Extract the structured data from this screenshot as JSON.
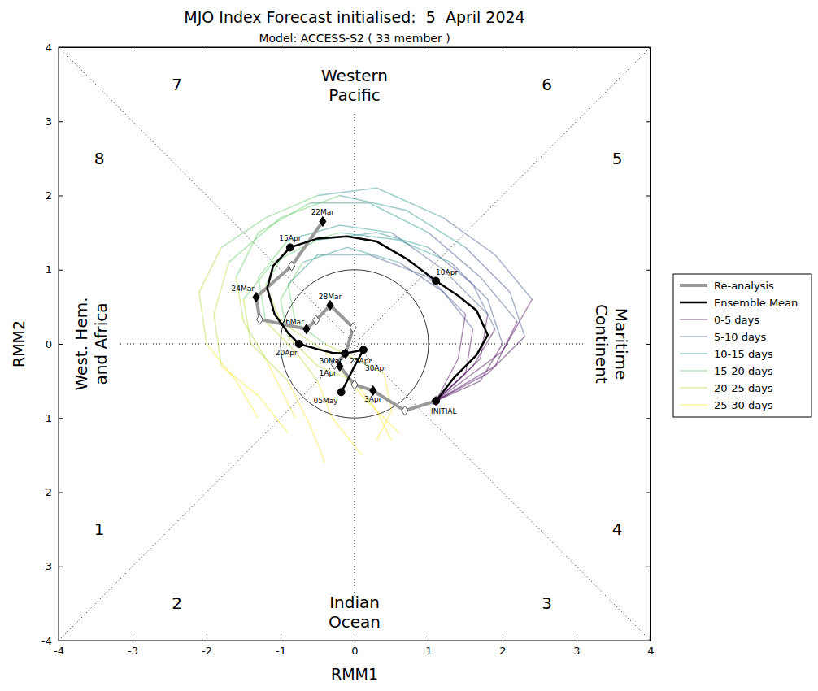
{
  "chart_data": {
    "type": "mjo_phase",
    "title": "MJO Index Forecast initialised:  5  April 2024",
    "subtitle": "Model: ACCESS-S2 ( 33 member )",
    "xlabel": "RMM1",
    "ylabel": "RMM2",
    "xlim": [
      -4,
      4
    ],
    "ylim": [
      -4,
      4
    ],
    "xticks": [
      -4,
      -3,
      -2,
      -1,
      0,
      1,
      2,
      3,
      4
    ],
    "yticks": [
      -4,
      -3,
      -2,
      -1,
      0,
      1,
      2,
      3,
      4
    ],
    "legend": "right",
    "amplitude_circle": 1,
    "phase_labels": [
      {
        "label": "1",
        "x": -3.45,
        "y": -2.5
      },
      {
        "label": "2",
        "x": -2.4,
        "y": -3.5
      },
      {
        "label": "3",
        "x": 2.6,
        "y": -3.5
      },
      {
        "label": "4",
        "x": 3.55,
        "y": -2.5
      },
      {
        "label": "5",
        "x": 3.55,
        "y": 2.5
      },
      {
        "label": "6",
        "x": 2.6,
        "y": 3.5
      },
      {
        "label": "7",
        "x": -2.4,
        "y": 3.5
      },
      {
        "label": "8",
        "x": -3.45,
        "y": 2.5
      }
    ],
    "region_labels": [
      {
        "label": "Western\nPacific",
        "x": 0,
        "y": 3.48
      },
      {
        "label": "Indian\nOcean",
        "x": 0,
        "y": -3.62
      },
      {
        "label": "West. Hem.\nand Africa",
        "x": -3.56,
        "y": 0
      },
      {
        "label": "Maritime\nContinent",
        "x": 3.47,
        "y": 0
      }
    ],
    "series": [
      {
        "name": "Re-analysis",
        "color": "#999999",
        "marker": "diamond",
        "x": [
          -0.43,
          -0.85,
          -1.33,
          -1.28,
          -0.65,
          -0.52,
          -0.33,
          -0.02,
          -0.12,
          -0.27,
          -0.2,
          0.0,
          0.25,
          0.68,
          1.1
        ],
        "y": [
          1.65,
          1.05,
          0.63,
          0.33,
          0.2,
          0.32,
          0.52,
          0.22,
          -0.13,
          -0.28,
          -0.3,
          -0.55,
          -0.63,
          -0.9,
          -0.77
        ],
        "point_labels": [
          "22Mar",
          null,
          "24Mar",
          null,
          "26Mar",
          null,
          "28Mar",
          null,
          "30Mar",
          null,
          "1Apr",
          null,
          "3Apr",
          null,
          null
        ]
      },
      {
        "name": "Ensemble Mean",
        "color": "#000000",
        "marker": "circle",
        "x": [
          1.1,
          1.35,
          1.65,
          1.8,
          1.65,
          1.4,
          1.1,
          0.7,
          0.3,
          -0.1,
          -0.5,
          -0.87,
          -1.1,
          -1.18,
          -1.08,
          -0.9,
          -0.75,
          -0.5,
          -0.3,
          -0.13,
          0.12,
          0.0,
          -0.1,
          -0.18
        ],
        "y": [
          -0.77,
          -0.45,
          -0.15,
          0.12,
          0.45,
          0.65,
          0.85,
          1.15,
          1.38,
          1.45,
          1.42,
          1.3,
          1.05,
          0.75,
          0.4,
          0.15,
          0.0,
          -0.07,
          -0.12,
          -0.13,
          -0.08,
          -0.3,
          -0.5,
          -0.65
        ],
        "point_labels": [
          "INITIAL",
          null,
          null,
          null,
          null,
          null,
          "10Apr",
          null,
          null,
          null,
          null,
          "15Apr",
          null,
          null,
          null,
          null,
          "20Apr",
          null,
          null,
          "25Apr",
          "30Apr",
          null,
          null,
          "05May"
        ]
      }
    ],
    "lead_bands": [
      {
        "name": "0-5 days",
        "color": "#440154"
      },
      {
        "name": "5-10 days",
        "color": "#3b528b"
      },
      {
        "name": "10-15 days",
        "color": "#21918c"
      },
      {
        "name": "15-20 days",
        "color": "#5ec962"
      },
      {
        "name": "20-25 days",
        "color": "#addc30"
      },
      {
        "name": "25-30 days",
        "color": "#fde725"
      }
    ],
    "members": [
      {
        "x": [
          1.1,
          1.9,
          2.2,
          1.7,
          1.0,
          0.2,
          -0.6,
          -1.3,
          -1.6,
          -1.5,
          -1.2,
          -1.0,
          -0.8
        ],
        "y": [
          -0.77,
          -0.3,
          0.3,
          0.9,
          1.5,
          1.9,
          1.9,
          1.5,
          0.9,
          0.3,
          -0.2,
          -0.6,
          -1.0
        ]
      },
      {
        "x": [
          1.1,
          1.7,
          1.8,
          1.2,
          0.5,
          -0.2,
          -0.9,
          -1.3,
          -1.2,
          -0.8,
          -0.5,
          -0.3,
          0.1
        ],
        "y": [
          -0.77,
          -0.2,
          0.4,
          1.0,
          1.5,
          1.6,
          1.4,
          0.9,
          0.3,
          -0.1,
          -0.5,
          -1.0,
          -1.5
        ]
      },
      {
        "x": [
          1.1,
          1.5,
          1.6,
          1.2,
          0.6,
          -0.1,
          -0.7,
          -1.0,
          -0.9,
          -0.5,
          0.0,
          0.3,
          0.5
        ],
        "y": [
          -0.77,
          -0.4,
          0.2,
          0.7,
          1.1,
          1.3,
          1.1,
          0.6,
          0.1,
          -0.3,
          -0.5,
          -0.9,
          -1.3
        ]
      },
      {
        "x": [
          1.1,
          1.8,
          2.3,
          2.1,
          1.5,
          0.7,
          -0.2,
          -1.0,
          -1.7,
          -1.9,
          -1.8,
          -1.3,
          -0.9
        ],
        "y": [
          -0.77,
          -0.4,
          0.1,
          0.7,
          1.3,
          1.8,
          2.0,
          1.7,
          1.1,
          0.4,
          -0.3,
          -0.7,
          -1.2
        ]
      },
      {
        "x": [
          1.1,
          1.6,
          1.9,
          1.6,
          1.0,
          0.3,
          -0.5,
          -1.1,
          -1.5,
          -1.4,
          -0.9,
          -0.6,
          -0.4
        ],
        "y": [
          -0.77,
          -0.3,
          0.2,
          0.8,
          1.3,
          1.5,
          1.4,
          1.1,
          0.6,
          0.0,
          -0.5,
          -1.1,
          -1.6
        ]
      },
      {
        "x": [
          1.1,
          1.4,
          1.5,
          1.0,
          0.2,
          -0.5,
          -0.9,
          -0.8,
          -0.4,
          0.0,
          0.4,
          0.5,
          0.3
        ],
        "y": [
          -0.77,
          -0.2,
          0.4,
          0.9,
          1.2,
          1.2,
          0.8,
          0.3,
          0.0,
          -0.2,
          -0.4,
          -0.9,
          -1.3
        ]
      },
      {
        "x": [
          1.1,
          2.0,
          2.4,
          1.9,
          1.2,
          0.3,
          -0.5,
          -1.2,
          -1.8,
          -2.1,
          -2.0,
          -1.6,
          -1.3
        ],
        "y": [
          -0.77,
          -0.1,
          0.6,
          1.2,
          1.7,
          2.1,
          2.0,
          1.7,
          1.3,
          0.7,
          0.0,
          -0.5,
          -1.0
        ]
      },
      {
        "x": [
          1.1,
          1.7,
          2.0,
          1.8,
          1.3,
          0.6,
          -0.2,
          -0.9,
          -1.2,
          -1.0,
          -0.4,
          0.1,
          0.6
        ],
        "y": [
          -0.77,
          -0.5,
          0.0,
          0.6,
          1.1,
          1.4,
          1.5,
          1.3,
          0.8,
          0.3,
          -0.1,
          -0.7,
          -1.2
        ]
      }
    ]
  }
}
